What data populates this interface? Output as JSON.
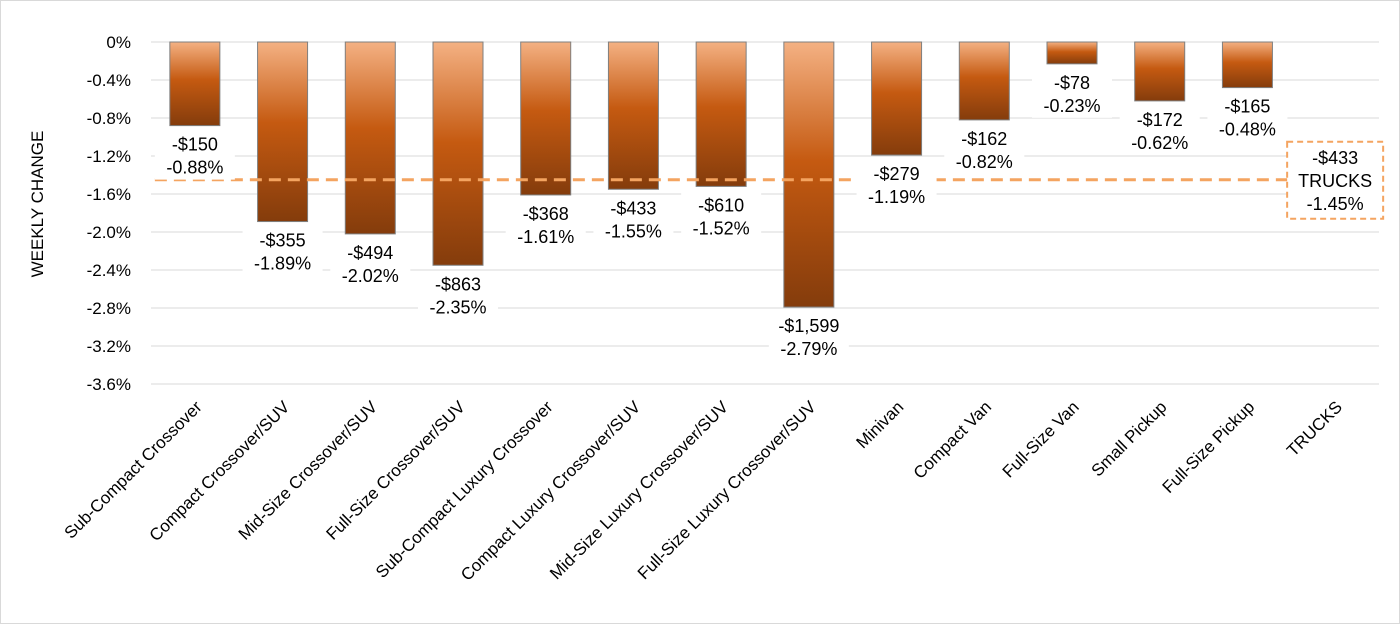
{
  "chart_data": {
    "type": "bar",
    "ylabel": "WEEKLY CHANGE",
    "xlabel": "",
    "title": "",
    "ylim": [
      -3.6,
      0
    ],
    "yticks": [
      "0%",
      "-0.4%",
      "-0.8%",
      "-1.2%",
      "-1.6%",
      "-2.0%",
      "-2.4%",
      "-2.8%",
      "-3.2%",
      "-3.6%"
    ],
    "ytick_values": [
      0,
      -0.4,
      -0.8,
      -1.2,
      -1.6,
      -2.0,
      -2.4,
      -2.8,
      -3.2,
      -3.6
    ],
    "grid": true,
    "categories": [
      "Sub-Compact Crossover",
      "Compact Crossover/SUV",
      "Mid-Size Crossover/SUV",
      "Full-Size Crossover/SUV",
      "Sub-Compact Luxury Crossover",
      "Compact Luxury Crossover/SUV",
      "Mid-Size Luxury Crossover/SUV",
      "Full-Size Luxury Crossover/SUV",
      "Minivan",
      "Compact Van",
      "Full-Size Van",
      "Small Pickup",
      "Full-Size Pickup",
      "TRUCKS"
    ],
    "values": [
      -0.88,
      -1.89,
      -2.02,
      -2.35,
      -1.61,
      -1.55,
      -1.52,
      -2.79,
      -1.19,
      -0.82,
      -0.23,
      -0.62,
      -0.48,
      null
    ],
    "dollar_labels": [
      "-$150",
      "-$355",
      "-$494",
      "-$863",
      "-$368",
      "-$433",
      "-$610",
      "-$1,599",
      "-$279",
      "-$162",
      "-$78",
      "-$172",
      "-$165"
    ],
    "percent_labels": [
      "-0.88%",
      "-1.89%",
      "-2.02%",
      "-2.35%",
      "-1.61%",
      "-1.55%",
      "-1.52%",
      "-2.79%",
      "-1.19%",
      "-0.82%",
      "-0.23%",
      "-0.62%",
      "-0.48%"
    ],
    "reference_line": {
      "name": "TRUCKS",
      "value": -1.45,
      "style": "dashed",
      "color": "#f4a460",
      "label_lines": [
        "-$433",
        "TRUCKS",
        "-1.45%"
      ]
    },
    "colors": {
      "bar_top": "#f4b183",
      "bar_mid": "#c55a11",
      "bar_bottom": "#843c0c",
      "bar_stroke": "#7f7f7f",
      "grid": "#d9d9d9"
    }
  }
}
